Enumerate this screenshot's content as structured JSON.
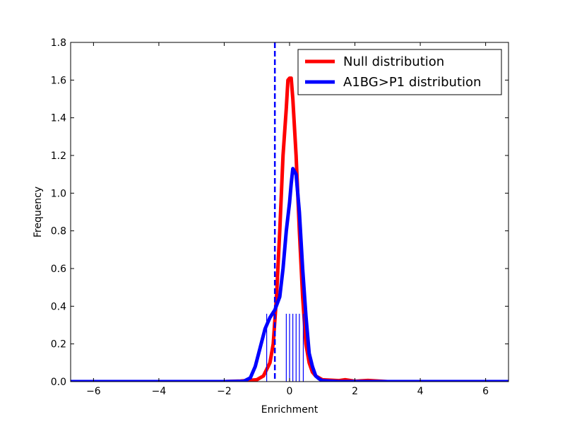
{
  "chart_data": {
    "type": "line",
    "xlabel": "Enrichment",
    "ylabel": "Frequency",
    "xlim": [
      -6.7,
      6.7
    ],
    "ylim": [
      0,
      1.8
    ],
    "xticks": [
      "−6",
      "−4",
      "−2",
      "0",
      "2",
      "4",
      "6"
    ],
    "xtick_values": [
      -6,
      -4,
      -2,
      0,
      2,
      4,
      6
    ],
    "yticks": [
      "0.0",
      "0.2",
      "0.4",
      "0.6",
      "0.8",
      "1.0",
      "1.2",
      "1.4",
      "1.6",
      "1.8"
    ],
    "ytick_values": [
      0,
      0.2,
      0.4,
      0.6,
      0.8,
      1.0,
      1.2,
      1.4,
      1.6,
      1.8
    ],
    "legend_position": "top-right",
    "series": [
      {
        "name": "Null distribution",
        "color": "#ff0000",
        "points": [
          [
            -6.7,
            0.0
          ],
          [
            -3.0,
            0.0
          ],
          [
            -2.0,
            0.0
          ],
          [
            -1.5,
            0.003
          ],
          [
            -1.0,
            0.01
          ],
          [
            -0.8,
            0.03
          ],
          [
            -0.6,
            0.1
          ],
          [
            -0.5,
            0.2
          ],
          [
            -0.4,
            0.45
          ],
          [
            -0.3,
            0.8
          ],
          [
            -0.2,
            1.2
          ],
          [
            -0.1,
            1.45
          ],
          [
            -0.05,
            1.6
          ],
          [
            0.0,
            1.61
          ],
          [
            0.05,
            1.61
          ],
          [
            0.1,
            1.5
          ],
          [
            0.2,
            1.2
          ],
          [
            0.3,
            0.8
          ],
          [
            0.4,
            0.45
          ],
          [
            0.5,
            0.2
          ],
          [
            0.6,
            0.1
          ],
          [
            0.7,
            0.05
          ],
          [
            0.8,
            0.03
          ],
          [
            1.0,
            0.01
          ],
          [
            1.5,
            0.005
          ],
          [
            1.7,
            0.01
          ],
          [
            2.0,
            0.002
          ],
          [
            2.4,
            0.006
          ],
          [
            3.0,
            0.0
          ],
          [
            6.7,
            0.0
          ]
        ]
      },
      {
        "name": "A1BG>P1 distribution",
        "color": "#0000ff",
        "points": [
          [
            -6.7,
            0.0
          ],
          [
            -2.0,
            0.0
          ],
          [
            -1.4,
            0.002
          ],
          [
            -1.2,
            0.02
          ],
          [
            -1.05,
            0.08
          ],
          [
            -0.9,
            0.18
          ],
          [
            -0.75,
            0.28
          ],
          [
            -0.6,
            0.34
          ],
          [
            -0.45,
            0.38
          ],
          [
            -0.3,
            0.45
          ],
          [
            -0.2,
            0.6
          ],
          [
            -0.1,
            0.8
          ],
          [
            0.0,
            0.95
          ],
          [
            0.05,
            1.05
          ],
          [
            0.1,
            1.13
          ],
          [
            0.2,
            1.1
          ],
          [
            0.3,
            0.9
          ],
          [
            0.4,
            0.6
          ],
          [
            0.5,
            0.35
          ],
          [
            0.6,
            0.15
          ],
          [
            0.7,
            0.08
          ],
          [
            0.8,
            0.03
          ],
          [
            0.9,
            0.015
          ],
          [
            1.0,
            0.005
          ],
          [
            1.5,
            0.0
          ],
          [
            6.7,
            0.0
          ]
        ]
      }
    ],
    "threshold_line": {
      "x": -0.45,
      "color": "#0000ff",
      "style": "dashed"
    },
    "rug": {
      "color": "#0000ff",
      "height": 0.36,
      "x": [
        -0.7,
        -0.1,
        0.0,
        0.1,
        0.2,
        0.3,
        0.42
      ]
    }
  }
}
